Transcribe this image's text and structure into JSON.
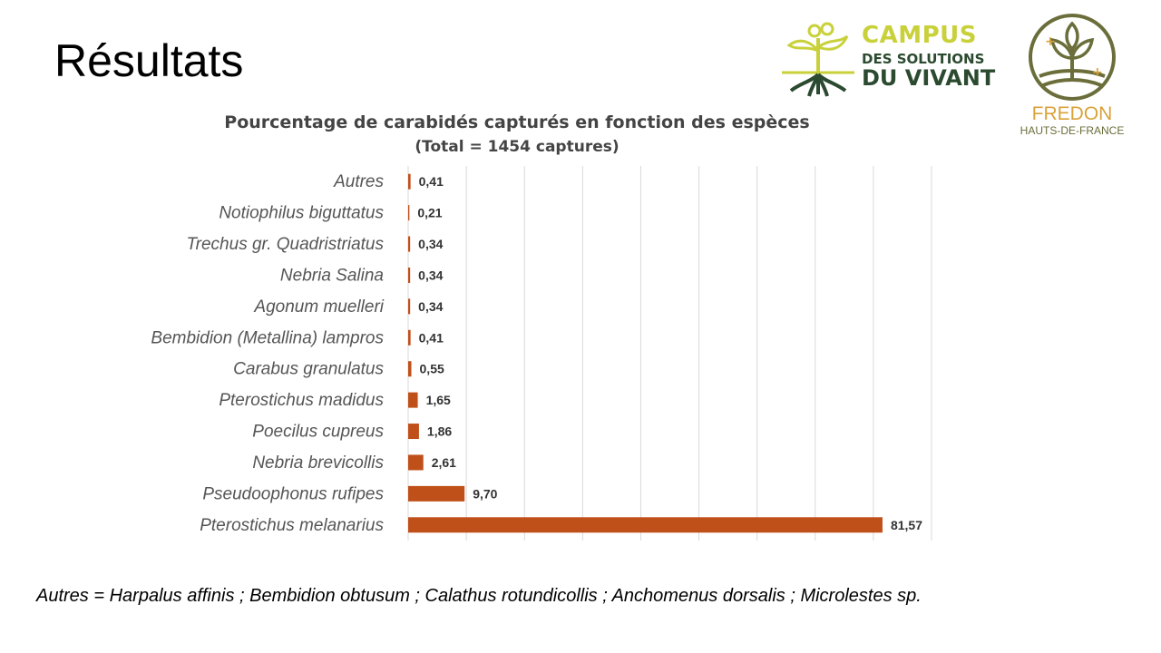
{
  "slide": {
    "title": "Résultats",
    "footnote": "Autres = Harpalus affinis ; Bembidion obtusum ; Calathus rotundicollis ; Anchomenus dorsalis ; Microlestes sp."
  },
  "logos": {
    "campus": {
      "line1": "CAMPUS",
      "line2": "DES SOLUTIONS",
      "line3": "DU VIVANT"
    },
    "fredon": {
      "name": "FREDON",
      "region": "HAUTS-DE-FRANCE"
    }
  },
  "chart_data": {
    "type": "bar",
    "orientation": "horizontal",
    "title": "Pourcentage de carabidés capturés en fonction des espèces",
    "subtitle": "(Total = 1454 captures)",
    "categories": [
      "Autres",
      "Notiophilus biguttatus",
      "Trechus gr. Quadristriatus",
      "Nebria Salina",
      "Agonum muelleri",
      "Bembidion (Metallina) lampros",
      "Carabus granulatus",
      "Pterostichus madidus",
      "Poecilus cupreus",
      "Nebria brevicollis",
      "Pseudoophonus rufipes",
      "Pterostichus melanarius"
    ],
    "values": [
      0.41,
      0.21,
      0.34,
      0.34,
      0.34,
      0.41,
      0.55,
      1.65,
      1.86,
      2.61,
      9.7,
      81.57
    ],
    "labels": [
      "0,41",
      "0,21",
      "0,34",
      "0,34",
      "0,34",
      "0,41",
      "0,55",
      "1,65",
      "1,86",
      "2,61",
      "9,70",
      "81,57"
    ],
    "xlim": [
      0,
      90
    ],
    "grid": true,
    "legend": "none",
    "bar_color": "#c0501a"
  }
}
